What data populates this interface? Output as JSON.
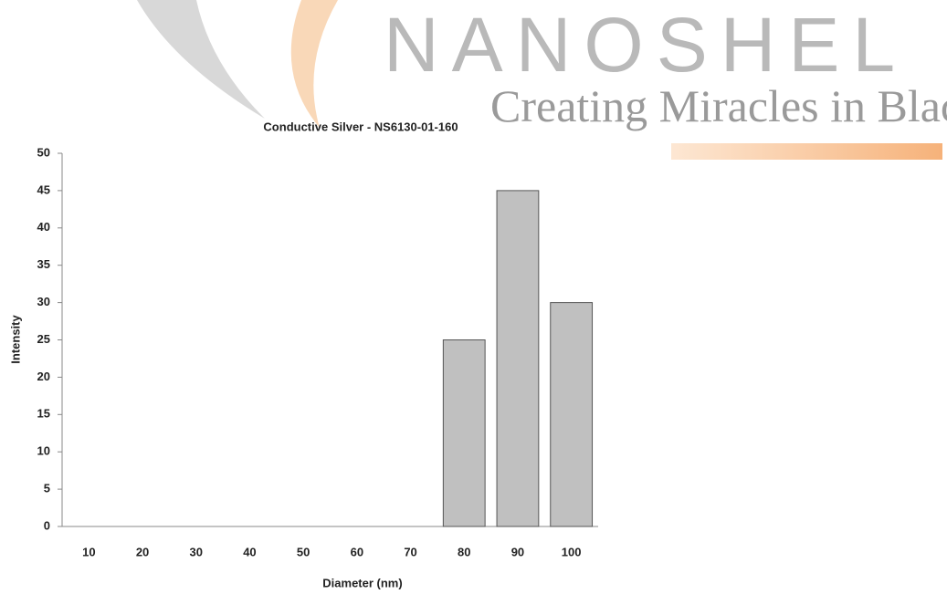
{
  "watermark": {
    "brand": "NANOSHEL",
    "tagline": "Creating Miracles in Black"
  },
  "chart_data": {
    "type": "bar",
    "title": "Conductive Silver - NS6130-01-160",
    "x_label": "Diameter (nm)",
    "y_label": "Intensity",
    "categories": [
      "10",
      "20",
      "30",
      "40",
      "50",
      "60",
      "70",
      "80",
      "90",
      "100"
    ],
    "values": [
      0,
      0,
      0,
      0,
      0,
      0,
      0,
      25,
      45,
      30
    ],
    "color": "#c0c0c0",
    "ylim": [
      0,
      50
    ],
    "yticks": [
      0,
      5,
      10,
      15,
      20,
      25,
      30,
      35,
      40,
      45,
      50
    ],
    "grid": false
  }
}
